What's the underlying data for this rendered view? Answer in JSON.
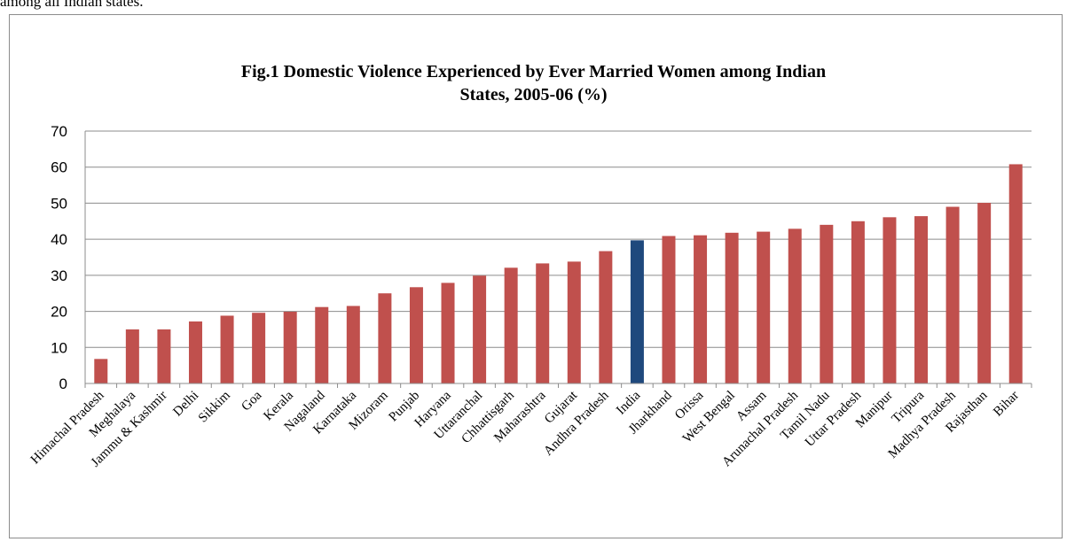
{
  "document": {
    "top_text": "among all Indian states."
  },
  "chart_data": {
    "type": "bar",
    "title_line1": "Fig.1  Domestic Violence Experienced by Ever Married Women among  Indian",
    "title_line2": "States, 2005-06  (%)",
    "xlabel": "",
    "ylabel": "",
    "ylim": [
      0,
      70
    ],
    "yticks": [
      0,
      10,
      20,
      30,
      40,
      50,
      60,
      70
    ],
    "grid": true,
    "legend": "none",
    "bar_color": "#c0504d",
    "highlight_color": "#1f497d",
    "highlight_category": "India",
    "categories": [
      "Himachal Pradesh",
      "Meghalaya",
      "Jammu & Kashmir",
      "Delhi",
      "Sikkim",
      "Goa",
      "Kerala",
      "Nagaland",
      "Karnataka",
      "Mizoram",
      "Punjab",
      "Haryana",
      "Uttaranchal",
      "Chhattisgarh",
      "Maharashtra",
      "Gujarat",
      "Andhra Pradesh",
      "India",
      "Jharkhand",
      "Orissa",
      "West Bengal",
      "Assam",
      "Arunachal Pradesh",
      "Tamil Nadu",
      "Uttar Pradesh",
      "Manipur",
      "Tripura",
      "Madhya Pradesh",
      "Rajasthan",
      "Bihar"
    ],
    "values": [
      6.8,
      15.0,
      15.0,
      17.2,
      18.8,
      19.6,
      19.9,
      21.2,
      21.5,
      25.0,
      26.7,
      27.9,
      29.9,
      32.1,
      33.3,
      33.8,
      36.7,
      39.7,
      40.9,
      41.1,
      41.8,
      42.1,
      42.9,
      44.0,
      45.0,
      46.1,
      46.4,
      49.0,
      50.1,
      60.8
    ]
  }
}
